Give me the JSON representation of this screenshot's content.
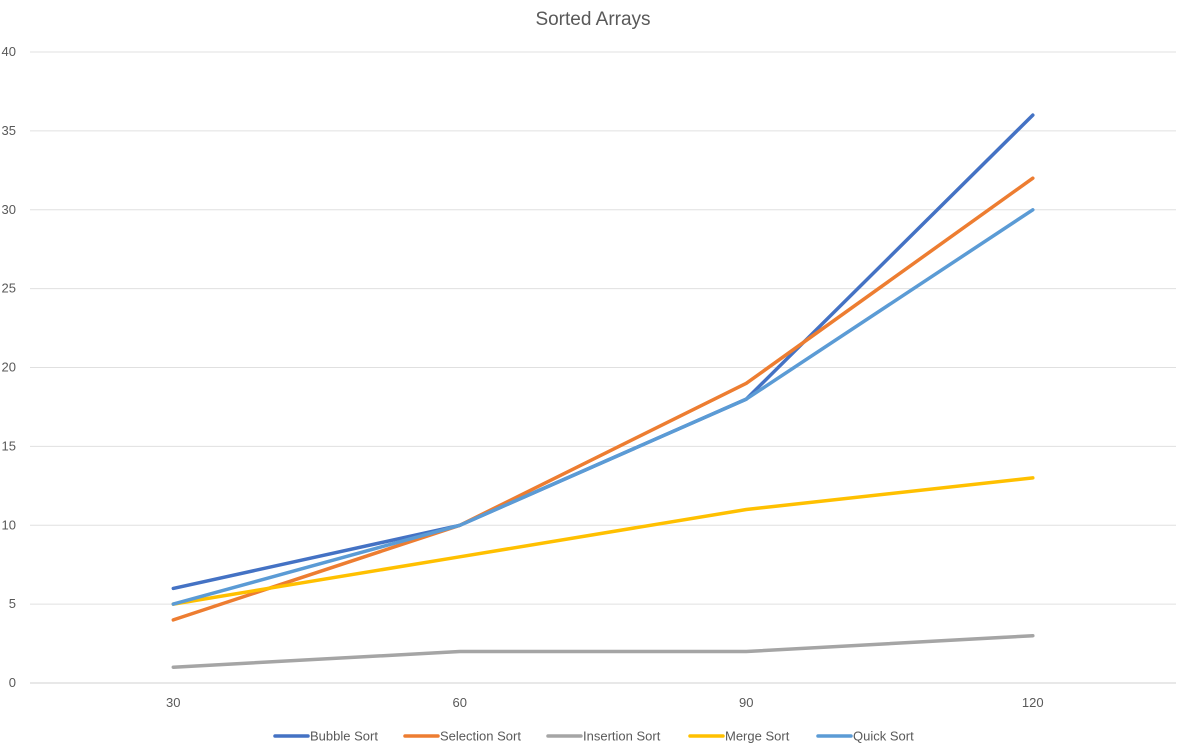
{
  "chart_data": {
    "type": "line",
    "title": "Sorted Arrays",
    "xlabel": "",
    "ylabel": "",
    "categories": [
      "30",
      "60",
      "90",
      "120"
    ],
    "ylim": [
      0,
      40
    ],
    "yticks": [
      "0",
      "5",
      "10",
      "15",
      "20",
      "25",
      "30",
      "35",
      "40"
    ],
    "grid": true,
    "legend_position": "bottom",
    "series": [
      {
        "name": "Bubble Sort",
        "color": "#4472C4",
        "values": [
          6,
          10,
          18,
          36
        ]
      },
      {
        "name": "Selection Sort",
        "color": "#ED7D31",
        "values": [
          4,
          10,
          19,
          32
        ]
      },
      {
        "name": "Insertion Sort",
        "color": "#A5A5A5",
        "values": [
          1,
          2,
          2,
          3
        ]
      },
      {
        "name": "Merge Sort",
        "color": "#FFC000",
        "values": [
          5,
          8,
          11,
          13
        ]
      },
      {
        "name": "Quick Sort",
        "color": "#5B9BD5",
        "values": [
          5,
          10,
          18,
          30
        ]
      }
    ]
  }
}
